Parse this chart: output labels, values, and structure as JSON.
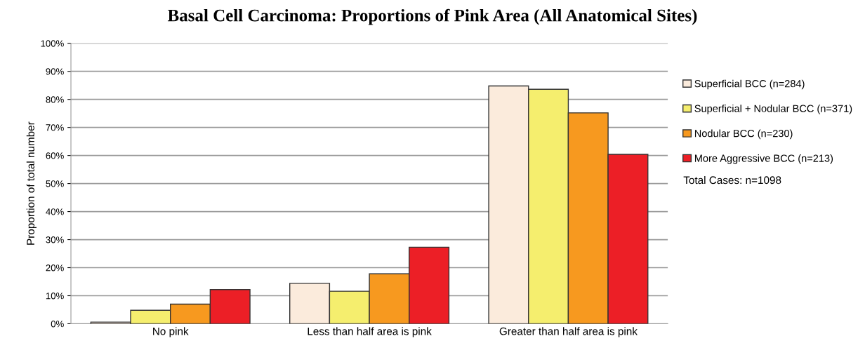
{
  "chart_data": {
    "type": "bar",
    "title": "Basal Cell Carcinoma: Proportions of Pink Area (All Anatomical Sites)",
    "ylabel": "Proportion of total number",
    "categories": [
      "No pink",
      "Less than half area is pink",
      "Greater than half area is pink"
    ],
    "series": [
      {
        "name": "Superficial BCC (n=284)",
        "color": "#fbebdc",
        "values": [
          0.6,
          14.4,
          84.8
        ]
      },
      {
        "name": "Superficial + Nodular BCC (n=371)",
        "color": "#f5ee6e",
        "values": [
          4.8,
          11.6,
          83.6
        ]
      },
      {
        "name": "Nodular BCC (n=230)",
        "color": "#f7991f",
        "values": [
          7.0,
          17.8,
          75.2
        ]
      },
      {
        "name": "More Aggressive BCC (n=213)",
        "color": "#ec1f26",
        "values": [
          12.2,
          27.3,
          60.4
        ]
      }
    ],
    "ylim": [
      0,
      100
    ],
    "yticks": [
      {
        "value": 0,
        "label": "0%"
      },
      {
        "value": 10,
        "label": "10%"
      },
      {
        "value": 20,
        "label": "20%"
      },
      {
        "value": 30,
        "label": "30%"
      },
      {
        "value": 40,
        "label": "40%"
      },
      {
        "value": 50,
        "label": "50%"
      },
      {
        "value": 60,
        "label": "60%"
      },
      {
        "value": 70,
        "label": "70%"
      },
      {
        "value": 80,
        "label": "80%"
      },
      {
        "value": 90,
        "label": "90%"
      },
      {
        "value": 100,
        "label": "100%"
      }
    ],
    "grid": "y",
    "legend": "right",
    "annotations": [
      "Total Cases: n=1098"
    ]
  }
}
